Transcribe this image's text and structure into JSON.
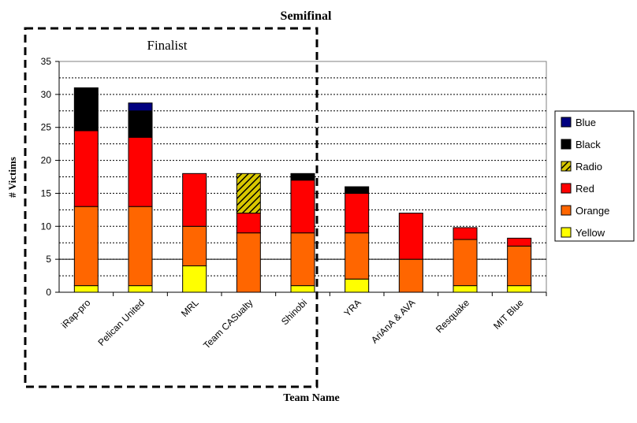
{
  "chart_data": {
    "type": "bar",
    "stacked": true,
    "title": "Semifinal",
    "inner_title": "Finalist",
    "xlabel": "Team Name",
    "ylabel": "# Victims",
    "ylim": [
      0,
      35
    ],
    "yticks": [
      "0",
      "5",
      "10",
      "15",
      "20",
      "25",
      "30",
      "35"
    ],
    "categories": [
      "iRap-pro",
      "Pelican United",
      "MRL",
      "Team CASualty",
      "Shinobi",
      "YRA",
      "AriAnA & AVA",
      "Resquake",
      "MIT Blue"
    ],
    "finalist_count": 5,
    "series": [
      {
        "name": "Yellow",
        "color": "#ffff00",
        "values": [
          1,
          1,
          4,
          0,
          1,
          2,
          0,
          1,
          1
        ]
      },
      {
        "name": "Orange",
        "color": "#ff6600",
        "values": [
          12,
          12,
          6,
          9,
          8,
          7,
          5,
          7,
          6
        ]
      },
      {
        "name": "Red",
        "color": "#ff0000",
        "values": [
          11.5,
          10.5,
          8,
          3,
          8,
          6,
          7,
          1.8,
          1.2
        ]
      },
      {
        "name": "Radio",
        "color": "#ffff00",
        "pattern": "hatch",
        "values": [
          0,
          0,
          0,
          6,
          0,
          0,
          0,
          0,
          0
        ]
      },
      {
        "name": "Black",
        "color": "#000000",
        "values": [
          6.5,
          4,
          0,
          0,
          1,
          1,
          0,
          0,
          0
        ]
      },
      {
        "name": "Blue",
        "color": "#000080",
        "values": [
          0,
          1.2,
          0,
          0,
          0,
          0,
          0,
          0,
          0
        ]
      }
    ],
    "legend_order": [
      "Blue",
      "Black",
      "Radio",
      "Red",
      "Orange",
      "Yellow"
    ],
    "legend_position": "right",
    "grid": true
  }
}
